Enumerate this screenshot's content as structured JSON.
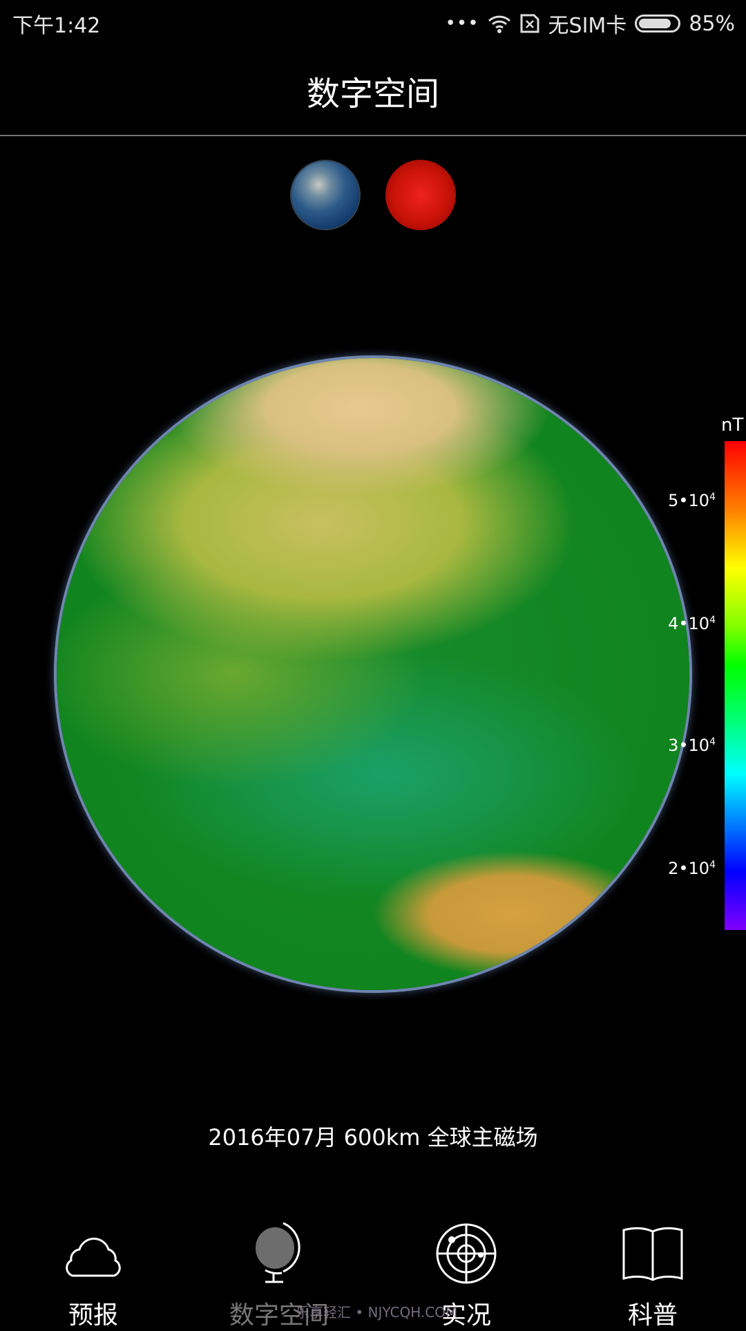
{
  "status_bar": {
    "time": "下午1:42",
    "carrier": "无SIM卡",
    "battery": "85%",
    "battery_level": 0.85,
    "icons": [
      "more-dots-icon",
      "wifi-icon",
      "no-sim-icon",
      "battery-icon"
    ]
  },
  "header": {
    "title": "数字空间"
  },
  "selectors": [
    {
      "name": "earth",
      "icon": "earth-icon"
    },
    {
      "name": "sun",
      "icon": "sun-icon"
    }
  ],
  "colorbar": {
    "unit": "nT",
    "ticks": [
      "5•10",
      "4•10",
      "3•10",
      "2•10"
    ],
    "exponent": "4",
    "colors": [
      "#ff0000",
      "#ffff00",
      "#00ff00",
      "#00ffff",
      "#0000ff",
      "#8000ff"
    ]
  },
  "caption": "2016年07月 600km 全球主磁场",
  "nav": [
    {
      "label": "预报",
      "icon": "cloud-icon"
    },
    {
      "label": "数字空间",
      "icon": "globe-icon",
      "active": true
    },
    {
      "label": "实况",
      "icon": "radar-icon"
    },
    {
      "label": "科普",
      "icon": "book-icon"
    }
  ],
  "watermark": "乐享轻汇 • NJYCQH.COM",
  "colors": {
    "background": "#000000",
    "active_nav": "#777777",
    "text": "#ffffff"
  }
}
